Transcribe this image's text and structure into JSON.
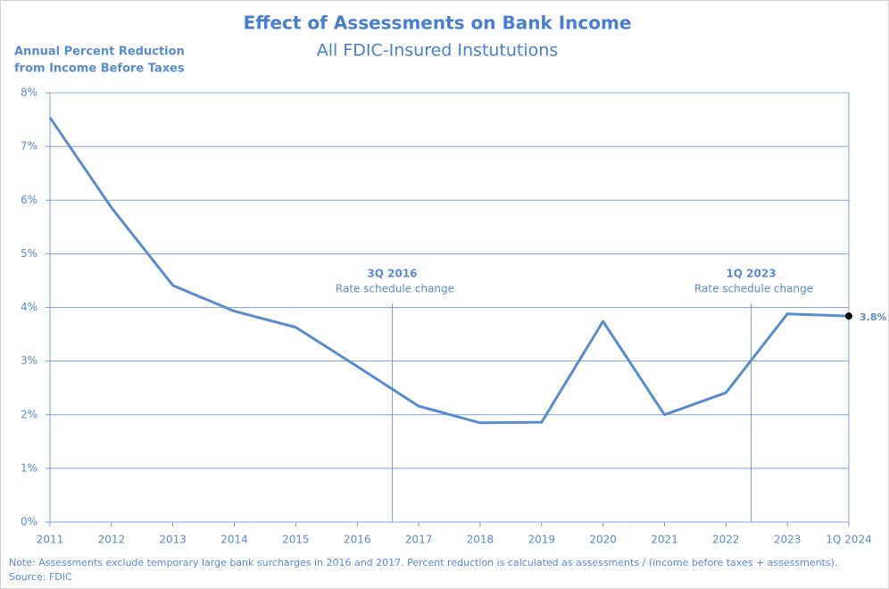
{
  "chart_data": {
    "type": "line",
    "title": "Effect of Assessments on Bank Income",
    "subtitle": "All FDIC-Insured Instututions",
    "y_label": [
      "Annual Percent Reduction",
      "from Income Before Taxes"
    ],
    "categories": [
      "2011",
      "2012",
      "2013",
      "2014",
      "2015",
      "2016",
      "2017",
      "2018",
      "2019",
      "2020",
      "2021",
      "2022",
      "2023",
      "1Q 2024"
    ],
    "values": [
      7.54,
      5.86,
      4.41,
      3.93,
      3.63,
      2.9,
      2.16,
      1.85,
      1.86,
      3.74,
      2.0,
      2.41,
      3.88,
      3.84
    ],
    "value_labels": [
      null,
      null,
      null,
      null,
      null,
      null,
      null,
      null,
      null,
      null,
      null,
      null,
      null,
      "3.8%"
    ],
    "color": "#5b8bd0",
    "ylim": [
      0,
      8
    ],
    "yticks": [
      {
        "value": 0,
        "label": "0%"
      },
      {
        "value": 1,
        "label": "1%"
      },
      {
        "value": 2,
        "label": "2%"
      },
      {
        "value": 3,
        "label": "3%"
      },
      {
        "value": 4,
        "label": "4%"
      },
      {
        "value": 5,
        "label": "5%"
      },
      {
        "value": 6,
        "label": "6%"
      },
      {
        "value": 7,
        "label": "7%"
      },
      {
        "value": 8,
        "label": "8%"
      }
    ],
    "grid": true,
    "annotations": [
      {
        "title": "3Q 2016",
        "text": "Rate schedule change"
      },
      {
        "title": "1Q 2023",
        "text": "Rate schedule change"
      }
    ],
    "notes": [
      "Note: Assessments  exclude temporary large bank surcharges in 2016 and 2017.  Percent reduction is calculated  as assessments  / (income before taxes + assessments).",
      "Source: FDIC"
    ]
  }
}
